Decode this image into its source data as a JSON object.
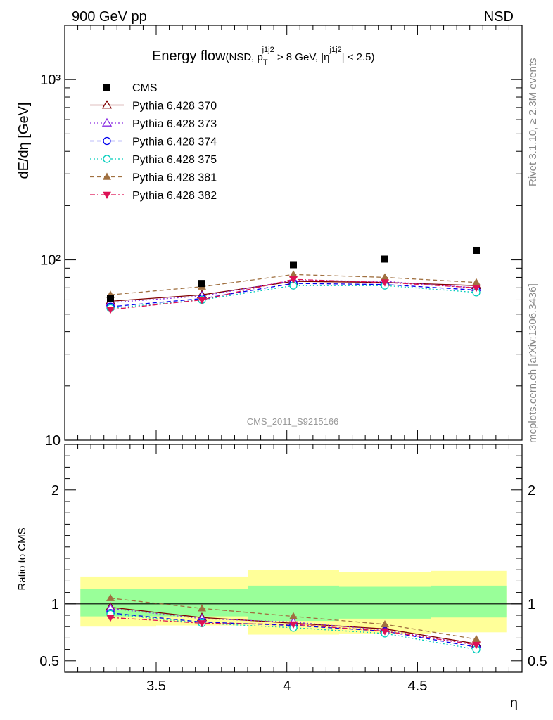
{
  "header": {
    "left_label": "900 GeV pp",
    "right_label": "NSD"
  },
  "side_labels": {
    "rivet": "Rivet 3.1.10, ≥ 2.3M events",
    "mcplots": "mcplots.cern.ch [arXiv:1306.3436]"
  },
  "watermark": "CMS_2011_S9215166",
  "chart_data": [
    {
      "type": "scatter",
      "panel": "main",
      "title_main": "Energy flow",
      "title_detail_a": "(NSD, p",
      "title_detail_sub": "T",
      "title_detail_sup": "j1j2",
      "title_detail_b": " > 8 GeV, |η",
      "title_detail_sup2": "j1j2",
      "title_detail_c": "| < 2.5)",
      "ylabel": "dE/dη [GeV]",
      "xlabel": "η",
      "yscale": "log",
      "xlim": [
        3.15,
        4.9
      ],
      "ylim": [
        10,
        2000
      ],
      "yticks": [
        {
          "value": 10,
          "label": "10"
        },
        {
          "value": 100,
          "label": "10²"
        },
        {
          "value": 1000,
          "label": "10³"
        }
      ],
      "legend_position": "top-left",
      "x": [
        3.325,
        3.675,
        4.025,
        4.375,
        4.725
      ],
      "data": {
        "name": "CMS",
        "color": "#000000",
        "marker": "square",
        "values": [
          61,
          74,
          94,
          101,
          113
        ]
      },
      "series": [
        {
          "name": "Pythia 6.428 370",
          "color": "#800000",
          "marker": "triangle-open",
          "dash": "solid",
          "values": [
            59,
            64,
            76,
            75,
            72
          ]
        },
        {
          "name": "Pythia 6.428 373",
          "color": "#8a2be2",
          "marker": "triangle-open",
          "dash": "dot",
          "values": [
            58,
            63,
            77,
            76,
            70
          ]
        },
        {
          "name": "Pythia 6.428 374",
          "color": "#0000ee",
          "marker": "circle-open",
          "dash": "dash",
          "values": [
            55,
            61,
            74,
            73,
            68
          ]
        },
        {
          "name": "Pythia 6.428 375",
          "color": "#00ccbb",
          "marker": "circle-open",
          "dash": "dot",
          "values": [
            54,
            60,
            72,
            72,
            66
          ]
        },
        {
          "name": "Pythia 6.428 381",
          "color": "#a07040",
          "marker": "triangle-filled",
          "dash": "dash",
          "values": [
            64,
            71,
            83,
            80,
            75
          ]
        },
        {
          "name": "Pythia 6.428 382",
          "color": "#dd1155",
          "marker": "triangle-down-filled",
          "dash": "dashdot",
          "values": [
            53,
            60,
            78,
            75,
            70
          ]
        }
      ]
    },
    {
      "type": "line",
      "panel": "ratio",
      "ylabel": "Ratio to CMS",
      "xlabel": "η",
      "xlim": [
        3.15,
        4.9
      ],
      "ylim": [
        0.4,
        2.4
      ],
      "yticks": [
        {
          "value": 0.5,
          "label": "0.5"
        },
        {
          "value": 1,
          "label": "1"
        },
        {
          "value": 2,
          "label": "2"
        }
      ],
      "xticks": [
        {
          "value": 3.5,
          "label": "3.5"
        },
        {
          "value": 4,
          "label": "4"
        },
        {
          "value": 4.5,
          "label": "4.5"
        }
      ],
      "bins": [
        [
          3.15,
          3.5
        ],
        [
          3.5,
          3.85
        ],
        [
          3.85,
          4.2
        ],
        [
          4.2,
          4.55
        ],
        [
          4.55,
          4.9
        ]
      ],
      "band_outer": [
        [
          0.8,
          1.24
        ],
        [
          0.81,
          1.24
        ],
        [
          0.73,
          1.3
        ],
        [
          0.74,
          1.28
        ],
        [
          0.75,
          1.29
        ]
      ],
      "band_inner": [
        [
          0.89,
          1.13
        ],
        [
          0.89,
          1.13
        ],
        [
          0.85,
          1.16
        ],
        [
          0.87,
          1.15
        ],
        [
          0.88,
          1.16
        ]
      ],
      "band_outer_color": "#ffff99",
      "band_inner_color": "#99ff99",
      "x": [
        3.325,
        3.675,
        4.025,
        4.375,
        4.725
      ],
      "series": [
        {
          "name": "Pythia 6.428 370",
          "values": [
            0.97,
            0.88,
            0.83,
            0.78,
            0.65
          ]
        },
        {
          "name": "Pythia 6.428 373",
          "values": [
            0.96,
            0.87,
            0.84,
            0.77,
            0.64
          ]
        },
        {
          "name": "Pythia 6.428 374",
          "values": [
            0.92,
            0.84,
            0.81,
            0.76,
            0.62
          ]
        },
        {
          "name": "Pythia 6.428 375",
          "values": [
            0.91,
            0.83,
            0.79,
            0.74,
            0.6
          ]
        },
        {
          "name": "Pythia 6.428 381",
          "values": [
            1.05,
            0.96,
            0.89,
            0.82,
            0.69
          ]
        },
        {
          "name": "Pythia 6.428 382",
          "values": [
            0.88,
            0.83,
            0.82,
            0.76,
            0.64
          ]
        }
      ]
    }
  ]
}
